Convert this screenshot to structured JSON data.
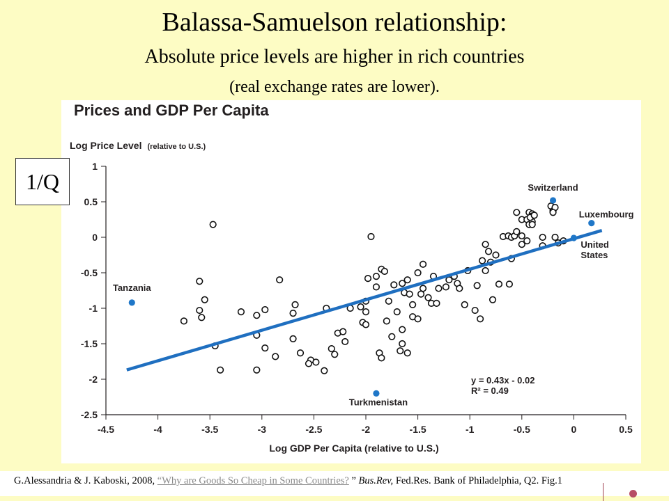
{
  "slide": {
    "title": "Balassa-Samuelson relationship:",
    "subtitle": "Absolute price levels are higher in rich countries",
    "subtitle2": "(real exchange rates are lower).",
    "badge": "1/Q",
    "citation": {
      "prefix": "G.Alessandria & J. Kaboski, 2008,",
      "link": "“Why are Goods So Cheap in Some Countries?",
      "quote_close": "”",
      "journal": "Bus.Rev,",
      "suffix": "Fed.Res. Bank of Philadelphia, Q2.  Fig.1"
    }
  },
  "colors": {
    "background": "#fdfcc4",
    "panel": "#ffffff",
    "highlight": "#1f77c8",
    "trend": "#1f6fc0",
    "text": "#231f20"
  },
  "chart_data": {
    "type": "scatter",
    "title": "Prices and GDP Per Capita",
    "ylabel": "Log Price Level",
    "ylabel_note": "(relative to U.S.)",
    "xlabel": "Log GDP Per Capita (relative to U.S.)",
    "xlim": [
      -4.5,
      0.5
    ],
    "ylim": [
      -2.5,
      1
    ],
    "xticks": [
      -4.5,
      -4,
      -3.5,
      -3,
      -2.5,
      -2,
      -1.5,
      -1,
      -0.5,
      0,
      0.5
    ],
    "yticks": [
      1,
      0.5,
      0,
      -0.5,
      -1,
      -1.5,
      -2,
      -2.5
    ],
    "grid": false,
    "trendline": {
      "slope": 0.43,
      "intercept": -0.02,
      "x_range": [
        -4.3,
        0.27
      ]
    },
    "equation": "y = 0.43x - 0.02",
    "r_squared": "R² = 0.49",
    "highlighted": [
      {
        "label": "Switzerland",
        "x": -0.2,
        "y": 0.52
      },
      {
        "label": "Luxembourg",
        "x": 0.17,
        "y": 0.2
      },
      {
        "label": "United States",
        "label_lines": [
          "United",
          "States"
        ],
        "x": 0,
        "y": -0.01
      },
      {
        "label": "Tanzania",
        "x": -4.25,
        "y": -0.92
      },
      {
        "label": "Turkmenistan",
        "x": -1.9,
        "y": -2.2
      }
    ],
    "points": [
      [
        -3.47,
        0.18
      ],
      [
        -3.6,
        -0.62
      ],
      [
        -3.55,
        -0.88
      ],
      [
        -3.6,
        -1.03
      ],
      [
        -3.58,
        -1.13
      ],
      [
        -3.75,
        -1.18
      ],
      [
        -3.45,
        -1.53
      ],
      [
        -3.4,
        -1.87
      ],
      [
        -3.05,
        -1.87
      ],
      [
        -3.2,
        -1.05
      ],
      [
        -3.05,
        -1.1
      ],
      [
        -2.97,
        -1.02
      ],
      [
        -3.05,
        -1.38
      ],
      [
        -2.97,
        -1.56
      ],
      [
        -2.87,
        -1.68
      ],
      [
        -2.83,
        -0.6
      ],
      [
        -2.68,
        -0.95
      ],
      [
        -2.7,
        -1.07
      ],
      [
        -2.7,
        -1.43
      ],
      [
        -2.63,
        -1.63
      ],
      [
        -2.53,
        -1.73
      ],
      [
        -2.55,
        -1.78
      ],
      [
        -2.48,
        -1.76
      ],
      [
        -2.4,
        -1.88
      ],
      [
        -2.38,
        -1.0
      ],
      [
        -2.33,
        -1.57
      ],
      [
        -2.3,
        -1.65
      ],
      [
        -2.27,
        -1.35
      ],
      [
        -2.22,
        -1.33
      ],
      [
        -2.2,
        -1.47
      ],
      [
        -2.15,
        -1.0
      ],
      [
        -2.05,
        -0.98
      ],
      [
        -2.0,
        -0.9
      ],
      [
        -1.98,
        -0.58
      ],
      [
        -1.95,
        0.01
      ],
      [
        -2.03,
        -1.2
      ],
      [
        -2.0,
        -1.23
      ],
      [
        -2.0,
        -1.05
      ],
      [
        -1.9,
        -0.55
      ],
      [
        -1.85,
        -0.45
      ],
      [
        -1.82,
        -0.48
      ],
      [
        -1.9,
        -0.7
      ],
      [
        -1.87,
        -1.63
      ],
      [
        -1.85,
        -1.7
      ],
      [
        -1.78,
        -0.9
      ],
      [
        -1.8,
        -1.18
      ],
      [
        -1.73,
        -0.67
      ],
      [
        -1.75,
        -1.4
      ],
      [
        -1.65,
        -0.65
      ],
      [
        -1.6,
        -0.6
      ],
      [
        -1.63,
        -0.78
      ],
      [
        -1.7,
        -1.05
      ],
      [
        -1.65,
        -1.3
      ],
      [
        -1.65,
        -1.5
      ],
      [
        -1.67,
        -1.6
      ],
      [
        -1.6,
        -1.63
      ],
      [
        -1.58,
        -0.8
      ],
      [
        -1.55,
        -0.95
      ],
      [
        -1.55,
        -1.12
      ],
      [
        -1.5,
        -1.15
      ],
      [
        -1.5,
        -0.5
      ],
      [
        -1.47,
        -0.8
      ],
      [
        -1.45,
        -0.38
      ],
      [
        -1.45,
        -0.72
      ],
      [
        -1.4,
        -0.85
      ],
      [
        -1.37,
        -0.93
      ],
      [
        -1.35,
        -0.55
      ],
      [
        -1.3,
        -0.72
      ],
      [
        -1.32,
        -0.93
      ],
      [
        -1.23,
        -0.7
      ],
      [
        -1.2,
        -0.6
      ],
      [
        -1.15,
        -0.55
      ],
      [
        -1.12,
        -0.65
      ],
      [
        -1.1,
        -0.72
      ],
      [
        -1.05,
        -0.95
      ],
      [
        -1.02,
        -0.47
      ],
      [
        -0.88,
        -0.33
      ],
      [
        -0.93,
        -0.68
      ],
      [
        -0.95,
        -1.03
      ],
      [
        -0.9,
        -1.15
      ],
      [
        -0.85,
        -0.1
      ],
      [
        -0.85,
        -0.47
      ],
      [
        -0.82,
        -0.2
      ],
      [
        -0.8,
        -0.35
      ],
      [
        -0.78,
        -0.88
      ],
      [
        -0.75,
        -0.25
      ],
      [
        -0.72,
        -0.66
      ],
      [
        -0.68,
        0.01
      ],
      [
        -0.63,
        0.02
      ],
      [
        -0.6,
        0.0
      ],
      [
        -0.57,
        0.02
      ],
      [
        -0.6,
        -0.3
      ],
      [
        -0.62,
        -0.66
      ],
      [
        -0.55,
        0.08
      ],
      [
        -0.5,
        0.02
      ],
      [
        -0.5,
        -0.1
      ],
      [
        -0.55,
        0.35
      ],
      [
        -0.5,
        0.25
      ],
      [
        -0.45,
        0.25
      ],
      [
        -0.43,
        0.35
      ],
      [
        -0.43,
        0.18
      ],
      [
        -0.4,
        0.33
      ],
      [
        -0.4,
        0.3
      ],
      [
        -0.4,
        0.22
      ],
      [
        -0.4,
        0.18
      ],
      [
        -0.42,
        0.28
      ],
      [
        -0.38,
        0.31
      ],
      [
        -0.3,
        0.0
      ],
      [
        -0.3,
        -0.12
      ],
      [
        -0.22,
        0.44
      ],
      [
        -0.2,
        0.37
      ],
      [
        -0.18,
        0.42
      ],
      [
        -0.2,
        0.35
      ],
      [
        -0.18,
        0.0
      ],
      [
        -0.15,
        -0.08
      ],
      [
        -0.1,
        -0.05
      ],
      [
        -0.45,
        -0.05
      ]
    ]
  }
}
